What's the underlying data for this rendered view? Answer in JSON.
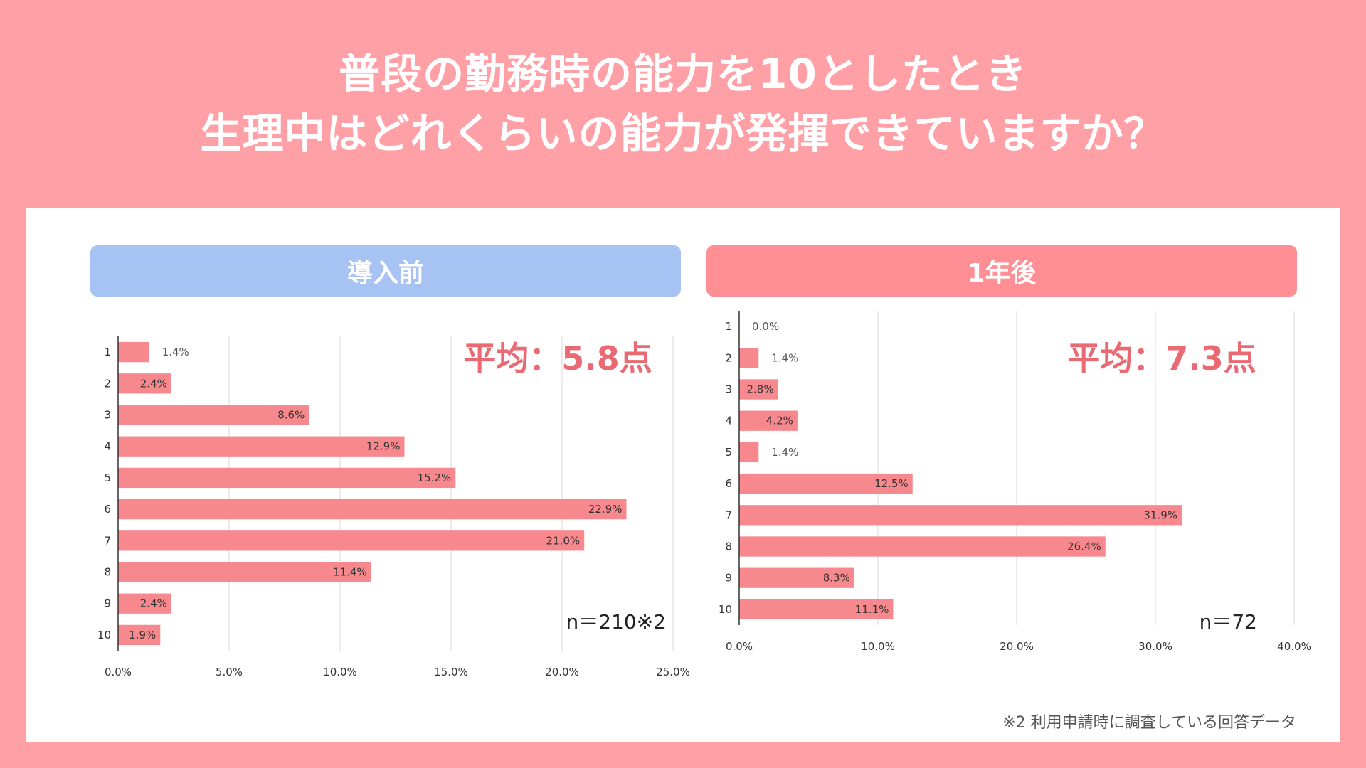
{
  "title": {
    "line1": "普段の勤務時の能力を10としたとき",
    "line2": "生理中はどれくらいの能力が発揮できていますか？"
  },
  "colors": {
    "background": "#ff9fa6",
    "bar": "#f7888d",
    "header_before": "#a7c3f3",
    "header_after": "#ff8f94",
    "average_text": "#e96a73"
  },
  "chart_data": [
    {
      "type": "bar",
      "orientation": "horizontal",
      "header": "導入前",
      "categories": [
        "1",
        "2",
        "3",
        "4",
        "5",
        "6",
        "7",
        "8",
        "9",
        "10"
      ],
      "values": [
        1.4,
        2.4,
        8.6,
        12.9,
        15.2,
        22.9,
        21.0,
        11.4,
        2.4,
        1.9
      ],
      "labels": [
        "1.4%",
        "2.4%",
        "8.6%",
        "12.9%",
        "15.2%",
        "22.9%",
        "21.0%",
        "11.4%",
        "2.4%",
        "1.9%"
      ],
      "xlim": [
        0,
        25
      ],
      "xticks": [
        "0.0%",
        "5.0%",
        "10.0%",
        "15.0%",
        "20.0%",
        "25.0%"
      ],
      "average": "平均：5.8点",
      "n": "n＝210※2"
    },
    {
      "type": "bar",
      "orientation": "horizontal",
      "header": "1年後",
      "categories": [
        "1",
        "2",
        "3",
        "4",
        "5",
        "6",
        "7",
        "8",
        "9",
        "10"
      ],
      "values": [
        0.0,
        1.4,
        2.8,
        4.2,
        1.4,
        12.5,
        31.9,
        26.4,
        8.3,
        11.1
      ],
      "labels": [
        "0.0%",
        "1.4%",
        "2.8%",
        "4.2%",
        "1.4%",
        "12.5%",
        "31.9%",
        "26.4%",
        "8.3%",
        "11.1%"
      ],
      "xlim": [
        0,
        40
      ],
      "xticks": [
        "0.0%",
        "10.0%",
        "20.0%",
        "30.0%",
        "40.0%"
      ],
      "average": "平均：7.3点",
      "n": "n＝72"
    }
  ],
  "footnote": "※2 利用申請時に調査している回答データ"
}
